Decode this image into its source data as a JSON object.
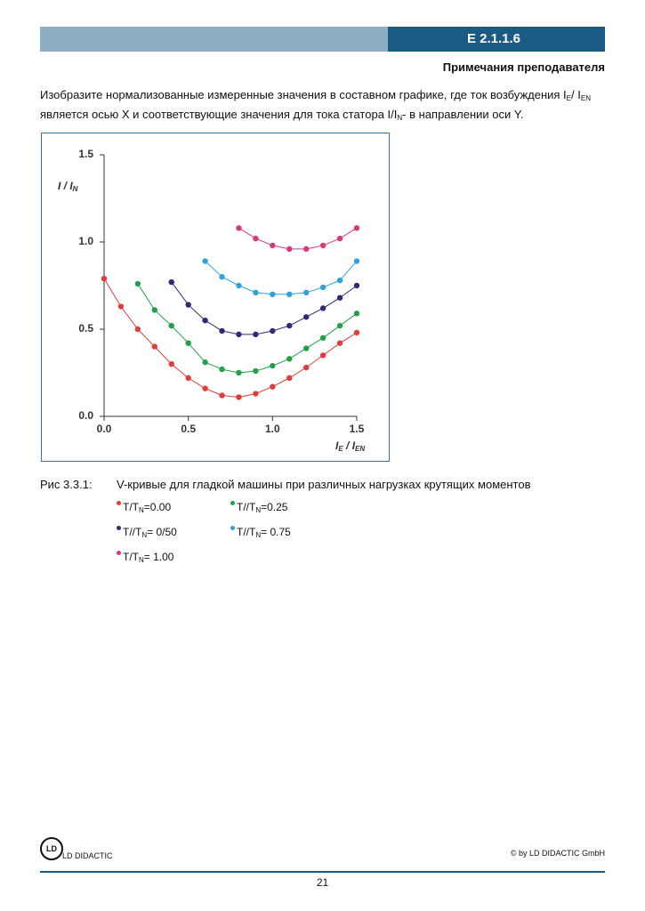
{
  "header": {
    "code": "E 2.1.1.6",
    "subtitle": "Примечания преподавателя"
  },
  "intro": [
    "Изобразите нормализованные измеренные значения в составном графике, где ток возбуждения I",
    "E",
    "/ I",
    "EN",
    " является осью X и соответствующие значения для тока статора I/I",
    "N",
    "- в направлении оси Y."
  ],
  "chart_data": {
    "type": "line",
    "x_label": [
      "I",
      "E",
      " / I",
      "EN"
    ],
    "y_label": [
      "I / I",
      "N"
    ],
    "xlim": [
      0,
      1.5
    ],
    "ylim": [
      0,
      1.5
    ],
    "xticks": [
      {
        "value": 0,
        "label": "0.0"
      },
      0.5,
      {
        "value": 1,
        "label": "1.0"
      },
      1.5
    ],
    "yticks": [
      {
        "value": 0,
        "label": "0.0"
      },
      0.5,
      {
        "value": 1,
        "label": "1.0"
      },
      1.5
    ],
    "series": [
      {
        "name": [
          "T/T",
          "N",
          "=0.00"
        ],
        "color": "#e03c3c",
        "x": [
          0,
          0.1,
          0.2,
          0.3,
          0.4,
          0.5,
          0.6,
          0.7,
          0.8,
          0.9,
          1.0,
          1.1,
          1.2,
          1.3,
          1.4,
          1.5
        ],
        "values": [
          0.79,
          0.63,
          0.5,
          0.4,
          0.3,
          0.22,
          0.16,
          0.12,
          0.11,
          0.13,
          0.17,
          0.22,
          0.28,
          0.35,
          0.42,
          0.48
        ]
      },
      {
        "name": [
          "T//T",
          "N",
          "=0.25"
        ],
        "color": "#22a04a",
        "x": [
          0.2,
          0.3,
          0.4,
          0.5,
          0.6,
          0.7,
          0.8,
          0.9,
          1.0,
          1.1,
          1.2,
          1.3,
          1.4,
          1.5
        ],
        "values": [
          0.76,
          0.61,
          0.52,
          0.42,
          0.31,
          0.27,
          0.25,
          0.26,
          0.29,
          0.33,
          0.39,
          0.45,
          0.52,
          0.59
        ]
      },
      {
        "name": [
          "T//T",
          "N",
          "= 0/50"
        ],
        "color": "#2e2a78",
        "x": [
          0.4,
          0.5,
          0.6,
          0.7,
          0.8,
          0.9,
          1.0,
          1.1,
          1.2,
          1.3,
          1.4,
          1.5
        ],
        "values": [
          0.77,
          0.64,
          0.55,
          0.49,
          0.47,
          0.47,
          0.49,
          0.52,
          0.57,
          0.62,
          0.68,
          0.75
        ]
      },
      {
        "name": [
          "T//T",
          "N",
          "= 0.75"
        ],
        "color": "#2fa2da",
        "x": [
          0.6,
          0.7,
          0.8,
          0.9,
          1.0,
          1.1,
          1.2,
          1.3,
          1.4,
          1.5
        ],
        "values": [
          0.89,
          0.8,
          0.75,
          0.71,
          0.7,
          0.7,
          0.71,
          0.74,
          0.78,
          0.89
        ]
      },
      {
        "name": [
          "T/T",
          "N",
          "= 1.00"
        ],
        "color": "#d63a7e",
        "x": [
          0.8,
          0.9,
          1.0,
          1.1,
          1.2,
          1.3,
          1.4,
          1.5
        ],
        "values": [
          1.08,
          1.02,
          0.98,
          0.96,
          0.96,
          0.98,
          1.02,
          1.08
        ]
      }
    ]
  },
  "figure": {
    "number": "Рис 3.3.1:",
    "caption": "V-кривые для гладкой машины при различных нагрузках крутящих моментов"
  },
  "footer": {
    "logo": "LD DIDACTIC",
    "copyright": "© by LD DIDACTIC GmbH",
    "page": "21"
  }
}
